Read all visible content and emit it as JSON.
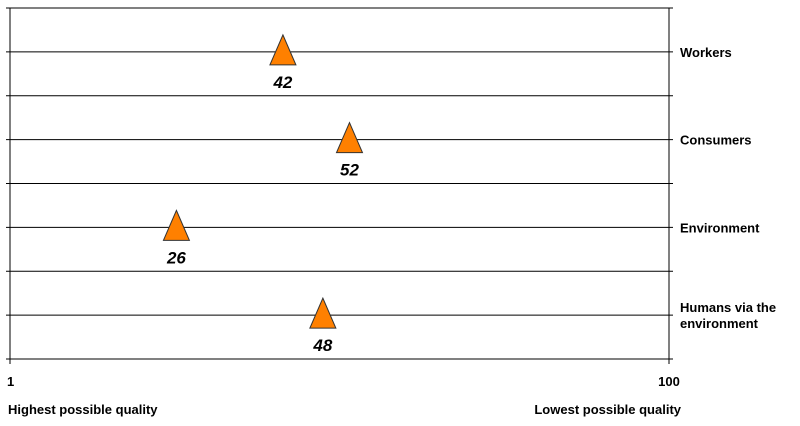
{
  "chart_data": {
    "type": "scatter",
    "xlim": [
      1,
      100
    ],
    "x_ticks": [
      "1",
      "100"
    ],
    "categories": [
      "Workers",
      "Consumers",
      "Environment",
      "Humans via the environment"
    ],
    "category_lines": [
      [
        "Workers"
      ],
      [
        "Consumers"
      ],
      [
        "Environment"
      ],
      [
        "Humans via the",
        "environment"
      ]
    ],
    "values": [
      42,
      52,
      26,
      48
    ],
    "marker": "triangle",
    "marker_color": "#ff8000",
    "xlabel_left": "Highest possible quality",
    "xlabel_right": "Lowest possible quality",
    "grid": true,
    "legend": "none"
  }
}
